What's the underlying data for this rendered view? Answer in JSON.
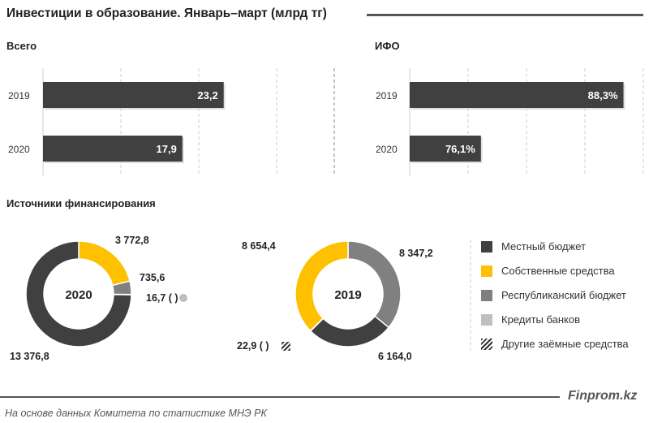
{
  "title": "Инвестиции в образование. Январь–март (млрд тг)",
  "source": "На основе данных  Комитета по статистике МНЭ РК",
  "brand": "Finprom.kz",
  "colors": {
    "local": "#404040",
    "own": "#ffc000",
    "republican": "#808080",
    "banks": "#bfbfbf",
    "other": "hatched",
    "bar": "#404040"
  },
  "chart_data": [
    {
      "type": "bar",
      "orientation": "horizontal",
      "title": "Всего",
      "categories": [
        "2019",
        "2020"
      ],
      "values": [
        23.2,
        17.9
      ],
      "labels": [
        "23,2",
        "17,9"
      ],
      "xlim": [
        0,
        30
      ],
      "grid": true
    },
    {
      "type": "bar",
      "orientation": "horizontal",
      "title": "ИФО",
      "categories": [
        "2019",
        "2020"
      ],
      "values": [
        88.3,
        76.1
      ],
      "labels": [
        "88,3%",
        "76,1%"
      ],
      "xlim": [
        70,
        90
      ],
      "grid": true
    },
    {
      "type": "pie",
      "donut": true,
      "section_title": "Источники  финансирования",
      "center_label": "2020",
      "slices": [
        {
          "series": "Собственные средства",
          "value": 3772.8,
          "label": "3 772,8"
        },
        {
          "series": "Республиканский бюджет",
          "value": 735.6,
          "label": "735,6"
        },
        {
          "series": "Кредиты банков",
          "value": 16.7,
          "label": "16,7 (  )"
        },
        {
          "series": "Местный бюджет",
          "value": 13376.8,
          "label": "13 376,8"
        }
      ]
    },
    {
      "type": "pie",
      "donut": true,
      "center_label": "2019",
      "slices": [
        {
          "series": "Республиканский бюджет",
          "value": 8347.2,
          "label": "8 347,2"
        },
        {
          "series": "Местный бюджет",
          "value": 6164.0,
          "label": "6 164,0"
        },
        {
          "series": "Другие заёмные средства",
          "value": 22.9,
          "label": "22,9 (  )"
        },
        {
          "series": "Собственные средства",
          "value": 8654.4,
          "label": "8 654,4"
        }
      ]
    }
  ],
  "legend": [
    {
      "label": "Местный бюджет",
      "key": "local"
    },
    {
      "label": "Собственные средства",
      "key": "own"
    },
    {
      "label": "Республиканский бюджет",
      "key": "republican"
    },
    {
      "label": "Кредиты банков",
      "key": "banks"
    },
    {
      "label": "Другие заёмные средства",
      "key": "other"
    }
  ]
}
